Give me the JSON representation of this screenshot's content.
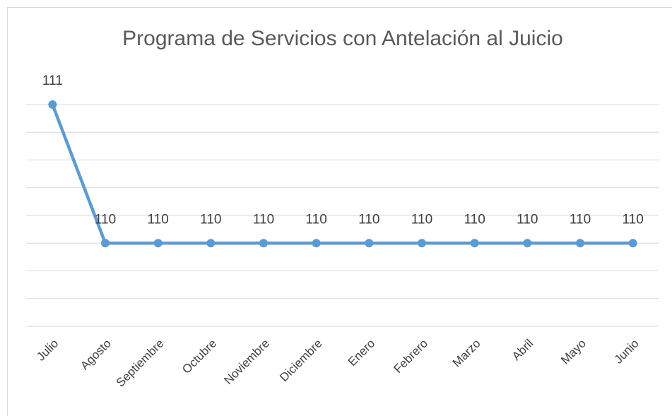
{
  "chart_data": {
    "type": "line",
    "title": "Programa de Servicios con Antelación al Juicio",
    "categories": [
      "Julio",
      "Agosto",
      "Septiembre",
      "Octubre",
      "Noviembre",
      "Diciembre",
      "Enero",
      "Febrero",
      "Marzo",
      "Abril",
      "Mayo",
      "Junio"
    ],
    "values": [
      111,
      110,
      110,
      110,
      110,
      110,
      110,
      110,
      110,
      110,
      110,
      110
    ],
    "color": "#5b9bd5",
    "ylim": [
      109.4,
      111
    ],
    "yticks": [
      109.4,
      109.6,
      109.8,
      110,
      110.2,
      110.4,
      110.6,
      110.8,
      111
    ],
    "ytick_labels": false,
    "grid": true,
    "data_labels": true
  }
}
